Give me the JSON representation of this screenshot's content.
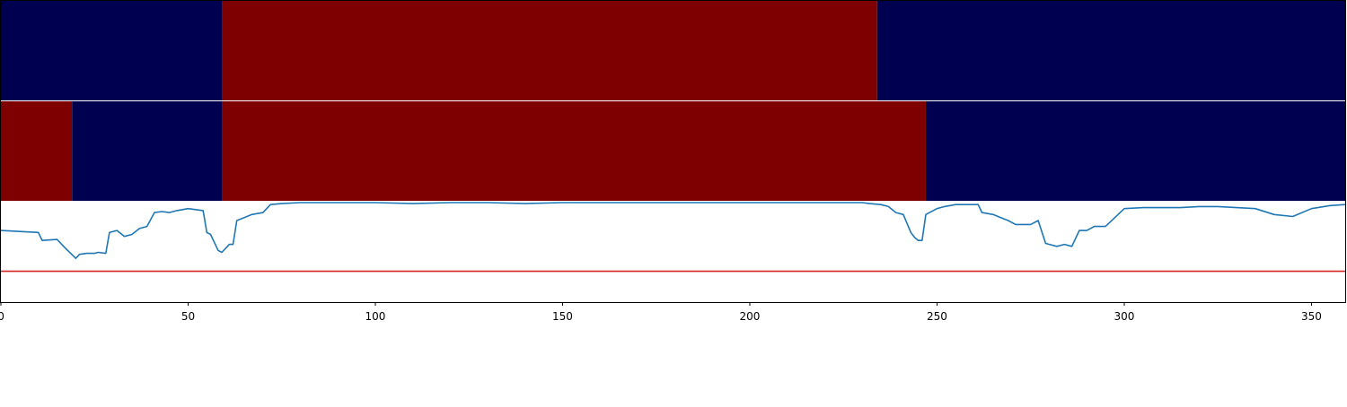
{
  "chart_data": {
    "type": "line",
    "title": "",
    "xlabel": "",
    "ylabel": "",
    "xlim": [
      0,
      359
    ],
    "ylim": [
      0,
      1
    ],
    "x_ticks": [
      0,
      50,
      100,
      150,
      200,
      250,
      300,
      350
    ],
    "x_tick_labels": [
      "0",
      "50",
      "100",
      "150",
      "200",
      "250",
      "300",
      "350"
    ],
    "colors": {
      "state_low": "#000050",
      "state_high": "#7f0000",
      "signal": "#1f77b4",
      "threshold": "#d62728"
    },
    "state_bands": [
      {
        "segments": [
          {
            "start": 0,
            "end": 59,
            "state": 0
          },
          {
            "start": 59,
            "end": 234,
            "state": 1
          },
          {
            "start": 234,
            "end": 359,
            "state": 0
          }
        ]
      },
      {
        "segments": [
          {
            "start": 0,
            "end": 19,
            "state": 1
          },
          {
            "start": 19,
            "end": 59,
            "state": 0
          },
          {
            "start": 59,
            "end": 247,
            "state": 1
          },
          {
            "start": 247,
            "end": 359,
            "state": 0
          }
        ]
      }
    ],
    "threshold": 0.31,
    "series": [
      {
        "x": [
          0,
          5,
          10,
          11,
          15,
          17,
          20,
          21,
          23,
          25,
          26,
          28,
          29,
          31,
          33,
          35,
          37,
          39,
          41,
          43,
          45,
          47,
          50,
          52,
          54,
          55,
          56,
          58,
          59,
          61,
          62,
          63,
          65,
          67,
          70,
          72,
          75,
          80,
          90,
          100,
          110,
          120,
          130,
          140,
          150,
          160,
          170,
          180,
          190,
          200,
          210,
          220,
          230,
          232,
          235,
          237,
          239,
          241,
          243,
          244,
          245,
          246,
          247,
          248,
          250,
          252,
          255,
          258,
          261,
          262,
          265,
          267,
          269,
          271,
          273,
          275,
          277,
          279,
          280,
          282,
          284,
          286,
          288,
          290,
          292,
          295,
          300,
          305,
          310,
          315,
          320,
          325,
          330,
          335,
          340,
          345,
          350,
          355,
          359
        ],
        "values": [
          0.72,
          0.71,
          0.7,
          0.62,
          0.63,
          0.55,
          0.44,
          0.48,
          0.49,
          0.49,
          0.5,
          0.49,
          0.7,
          0.72,
          0.66,
          0.68,
          0.74,
          0.76,
          0.9,
          0.91,
          0.9,
          0.92,
          0.94,
          0.93,
          0.92,
          0.7,
          0.68,
          0.52,
          0.5,
          0.58,
          0.58,
          0.82,
          0.85,
          0.88,
          0.9,
          0.98,
          0.99,
          1.0,
          1.0,
          1.0,
          0.99,
          1.0,
          1.0,
          0.99,
          1.0,
          1.0,
          1.0,
          1.0,
          1.0,
          1.0,
          1.0,
          1.0,
          1.0,
          0.99,
          0.98,
          0.96,
          0.9,
          0.88,
          0.7,
          0.65,
          0.62,
          0.62,
          0.88,
          0.9,
          0.94,
          0.96,
          0.98,
          0.98,
          0.98,
          0.9,
          0.88,
          0.85,
          0.82,
          0.78,
          0.78,
          0.78,
          0.82,
          0.59,
          0.58,
          0.56,
          0.58,
          0.56,
          0.72,
          0.72,
          0.76,
          0.76,
          0.94,
          0.95,
          0.95,
          0.95,
          0.96,
          0.96,
          0.95,
          0.94,
          0.88,
          0.86,
          0.94,
          0.97,
          0.98
        ]
      }
    ]
  }
}
